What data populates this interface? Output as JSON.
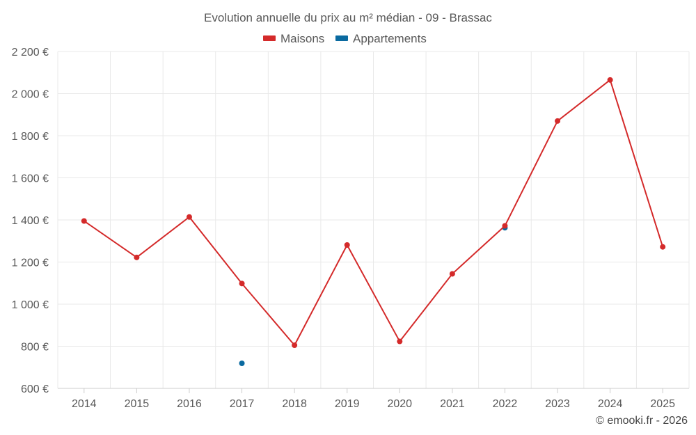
{
  "chart_data": {
    "type": "line",
    "title": "Evolution annuelle du prix au m² médian - 09 - Brassac",
    "categories": [
      "2014",
      "2015",
      "2016",
      "2017",
      "2018",
      "2019",
      "2020",
      "2021",
      "2022",
      "2023",
      "2024",
      "2025"
    ],
    "ylim": [
      600,
      2200
    ],
    "yticks": [
      600,
      800,
      1000,
      1200,
      1400,
      1600,
      1800,
      2000,
      2200
    ],
    "ytick_labels": [
      "600 €",
      "800 €",
      "1 000 €",
      "1 200 €",
      "1 400 €",
      "1 600 €",
      "1 800 €",
      "2 000 €",
      "2 200 €"
    ],
    "grid": true,
    "legend_position": "top-center",
    "series": [
      {
        "name": "Maisons",
        "color": "#d42a2a",
        "line": true,
        "values": [
          1395,
          1222,
          1414,
          1098,
          805,
          1281,
          823,
          1144,
          1372,
          1870,
          2065,
          1272
        ]
      },
      {
        "name": "Appartements",
        "color": "#0a6aa0",
        "line": false,
        "values": [
          null,
          null,
          null,
          719,
          null,
          null,
          null,
          null,
          1363,
          null,
          null,
          null
        ]
      }
    ],
    "credit": "© emooki.fr - 2026"
  }
}
